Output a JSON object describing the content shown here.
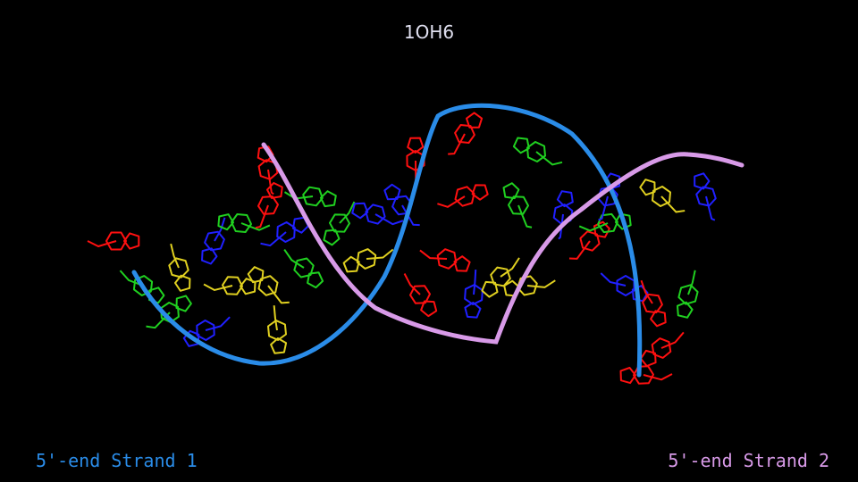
{
  "title": "1OH6",
  "labels": {
    "strand1": "5'-end Strand 1",
    "strand2": "5'-end Strand 2"
  },
  "colors": {
    "strand1_backbone": "#2a8ce8",
    "strand2_backbone": "#d89ae8",
    "base_red": "#ff1010",
    "base_green": "#20d020",
    "base_blue": "#2020ff",
    "base_yellow": "#e0d020",
    "background": "#000000"
  }
}
